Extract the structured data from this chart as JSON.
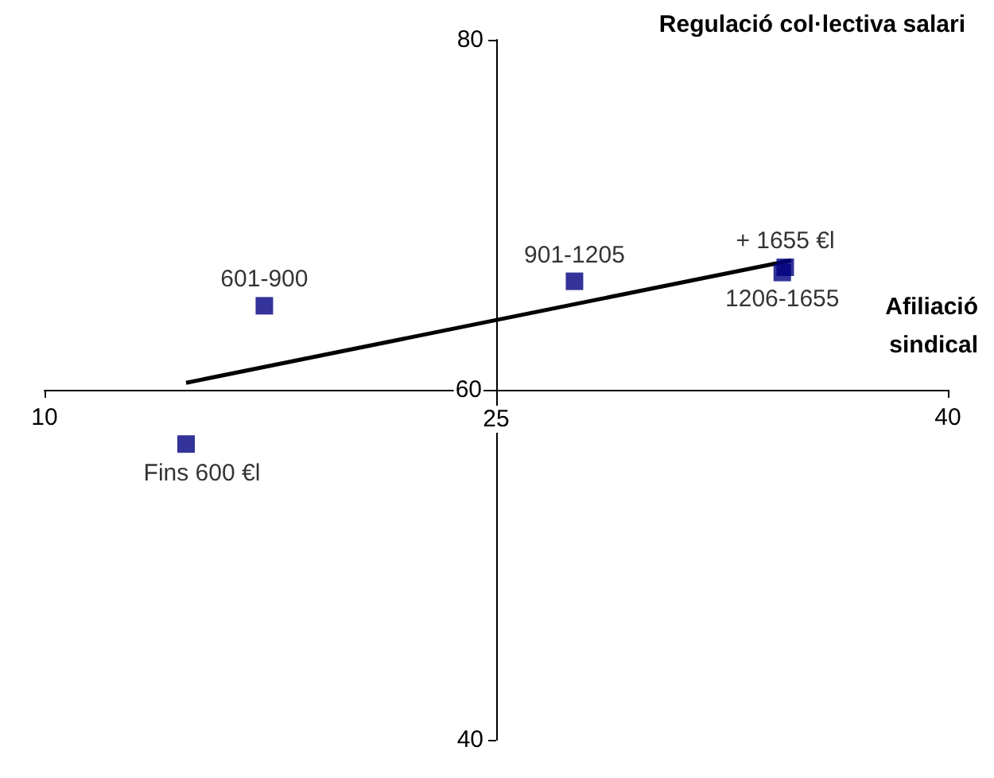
{
  "chart_data": {
    "type": "scatter",
    "xlabel": "Afiliació\nsindical",
    "ylabel": "Regulació col·lectiva salari",
    "grid": false,
    "xlim": [
      10,
      40
    ],
    "xticks": [
      10,
      25,
      40
    ],
    "ylim": [
      40,
      80
    ],
    "yticks": [
      40,
      60,
      80
    ],
    "series": [
      {
        "type": "scatter",
        "marker": "square",
        "color": "#000080",
        "x": [
          14.7,
          17.3,
          27.6,
          34.5,
          34.6
        ],
        "values": [
          56.9,
          64.8,
          66.2,
          66.7,
          67.0
        ]
      },
      {
        "type": "line",
        "marker": "none",
        "color": "#000000",
        "x": [
          14.7,
          34.8
        ],
        "values": [
          60.4,
          67.4
        ]
      }
    ],
    "annotations": [
      {
        "text": "Fins 600 €l",
        "x": 14.7,
        "y": 56.9
      },
      {
        "text": "601-900",
        "x": 17.3,
        "y": 64.8
      },
      {
        "text": "901-1205",
        "x": 27.6,
        "y": 66.2
      },
      {
        "text": "1206-1655",
        "x": 34.5,
        "y": 66.7
      },
      {
        "text": "+ 1655 €l",
        "x": 34.6,
        "y": 67.0
      }
    ]
  }
}
